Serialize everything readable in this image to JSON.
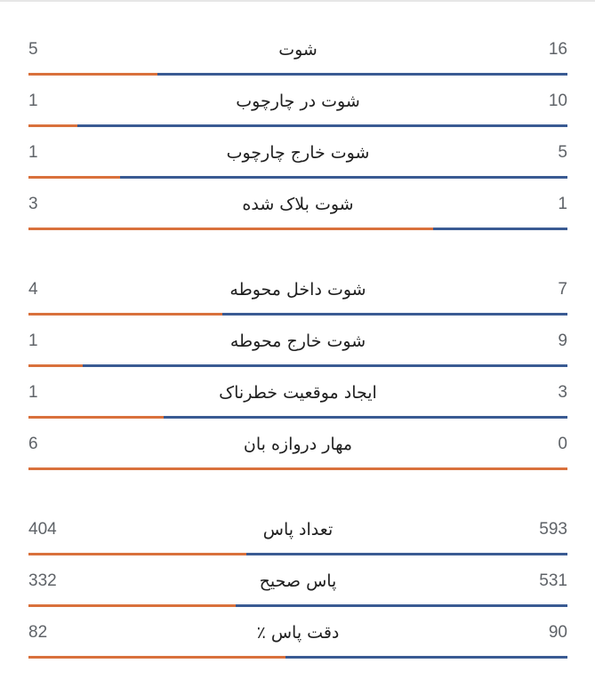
{
  "colors": {
    "home_bar": "#3a5b93",
    "away_bar": "#d9713c",
    "text": "#1f1f1f",
    "number": "#5f6368"
  },
  "groups": [
    {
      "rows": [
        {
          "label": "شوت",
          "left": "5",
          "right": "16",
          "left_share": 0.24
        },
        {
          "label": "شوت در چارچوب",
          "left": "1",
          "right": "10",
          "left_share": 0.09
        },
        {
          "label": "شوت خارج چارچوب",
          "left": "1",
          "right": "5",
          "left_share": 0.17
        },
        {
          "label": "شوت بلاک شده",
          "left": "3",
          "right": "1",
          "left_share": 0.75
        }
      ]
    },
    {
      "rows": [
        {
          "label": "شوت داخل محوطه",
          "left": "4",
          "right": "7",
          "left_share": 0.36
        },
        {
          "label": "شوت خارج محوطه",
          "left": "1",
          "right": "9",
          "left_share": 0.1
        },
        {
          "label": "ایجاد موقعیت خطرناک",
          "left": "1",
          "right": "3",
          "left_share": 0.25
        },
        {
          "label": "مهار دروازه بان",
          "left": "6",
          "right": "0",
          "left_share": 1.0
        }
      ]
    },
    {
      "rows": [
        {
          "label": "تعداد پاس",
          "left": "404",
          "right": "593",
          "left_share": 0.405
        },
        {
          "label": "پاس صحیح",
          "left": "332",
          "right": "531",
          "left_share": 0.385
        },
        {
          "label": "دقت پاس ٪",
          "left": "82",
          "right": "90",
          "left_share": 0.477
        }
      ]
    }
  ]
}
